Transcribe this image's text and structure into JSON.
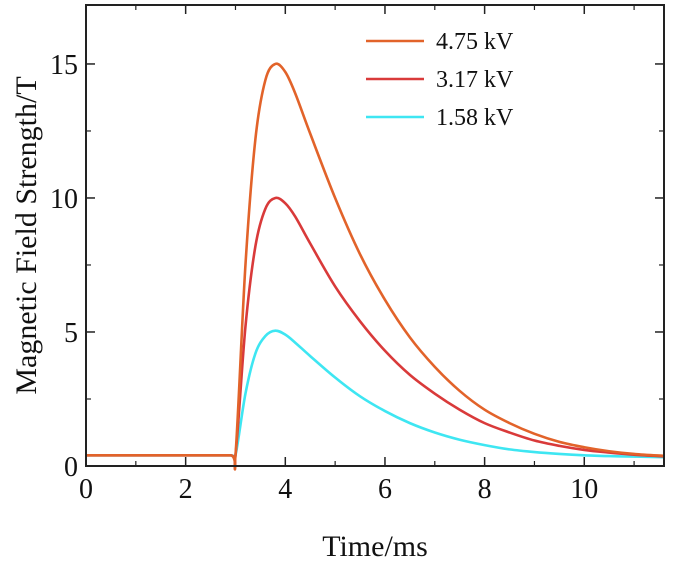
{
  "chart_data": {
    "type": "line",
    "xlabel": "Time/ms",
    "ylabel": "Magnetic Field Strength/T",
    "xlim": [
      0,
      11.6
    ],
    "ylim": [
      0,
      17.2
    ],
    "xticks": [
      0,
      2,
      4,
      6,
      8,
      10
    ],
    "yticks": [
      0,
      5,
      10,
      15
    ],
    "x_tick_labels": [
      "0",
      "2",
      "4",
      "6",
      "8",
      "10"
    ],
    "y_tick_labels": [
      "0",
      "5",
      "10",
      "15"
    ],
    "grid": false,
    "legend_position": "top-right",
    "x": [
      0,
      1,
      2,
      2.9,
      3.0,
      3.2,
      3.4,
      3.6,
      3.8,
      4.0,
      4.2,
      4.5,
      5.0,
      5.5,
      6.0,
      6.5,
      7.0,
      7.5,
      8.0,
      8.5,
      9.0,
      9.5,
      10.0,
      10.5,
      11.0,
      11.6
    ],
    "series": [
      {
        "name": "4.75 kV",
        "color": "#e2632a",
        "values": [
          0.4,
          0.4,
          0.4,
          0.4,
          0.4,
          7.5,
          12.2,
          14.4,
          15.0,
          14.7,
          13.9,
          12.4,
          10.0,
          7.9,
          6.2,
          4.8,
          3.7,
          2.8,
          2.1,
          1.6,
          1.2,
          0.9,
          0.7,
          0.55,
          0.45,
          0.38
        ]
      },
      {
        "name": "3.17 kV",
        "color": "#d93a3a",
        "values": [
          0.4,
          0.4,
          0.4,
          0.4,
          0.4,
          5.2,
          8.2,
          9.6,
          10.0,
          9.8,
          9.3,
          8.3,
          6.7,
          5.4,
          4.3,
          3.4,
          2.7,
          2.1,
          1.6,
          1.25,
          0.95,
          0.75,
          0.6,
          0.5,
          0.42,
          0.36
        ]
      },
      {
        "name": "1.58 kV",
        "color": "#3ee6f2",
        "values": [
          0.4,
          0.4,
          0.4,
          0.4,
          0.4,
          2.7,
          4.2,
          4.85,
          5.05,
          4.9,
          4.6,
          4.1,
          3.3,
          2.6,
          2.05,
          1.6,
          1.25,
          0.98,
          0.78,
          0.62,
          0.52,
          0.45,
          0.4,
          0.37,
          0.35,
          0.33
        ]
      }
    ]
  }
}
